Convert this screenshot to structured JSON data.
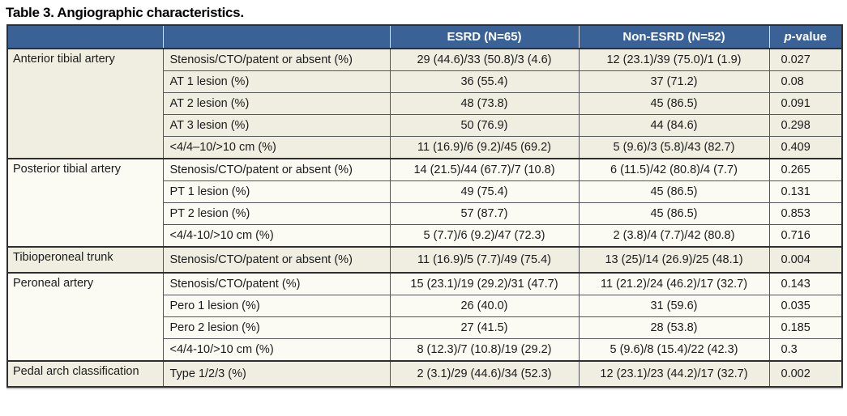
{
  "title": "Table 3. Angiographic characteristics.",
  "colors": {
    "header_bg": "#3a6296",
    "header_text": "#ffffff",
    "group_shade_cream": "#f0eee1",
    "group_shade_light": "#fbfaf3",
    "border_dark": "#2e2e2e",
    "border_thin": "#55565a"
  },
  "header": {
    "col1": "",
    "col2": "",
    "esrd": "ESRD (N=65)",
    "non_esrd": "Non-ESRD (N=52)",
    "p_italic": "p",
    "p_rest": "-value"
  },
  "table": {
    "groups": [
      {
        "label": "Anterior tibial artery",
        "shade": "cream",
        "rows": [
          {
            "measure": "Stenosis/CTO/patent or absent (%)",
            "esrd": "29 (44.6)/33 (50.8)/3 (4.6)",
            "non_esrd": "12 (23.1)/39 (75.0)/1 (1.9)",
            "p": "0.027"
          },
          {
            "measure": "AT 1 lesion (%)",
            "esrd": "36 (55.4)",
            "non_esrd": "37 (71.2)",
            "p": "0.08"
          },
          {
            "measure": "AT 2 lesion (%)",
            "esrd": "48 (73.8)",
            "non_esrd": "45 (86.5)",
            "p": "0.091"
          },
          {
            "measure": "AT 3 lesion (%)",
            "esrd": "50 (76.9)",
            "non_esrd": "44 (84.6)",
            "p": "0.298"
          },
          {
            "measure": "<4/4–10/>10 cm (%)",
            "esrd": "11 (16.9)/6 (9.2)/45 (69.2)",
            "non_esrd": "5 (9.6)/3 (5.8)/43 (82.7)",
            "p": "0.409"
          }
        ]
      },
      {
        "label": "Posterior tibial artery",
        "shade": "light",
        "rows": [
          {
            "measure": "Stenosis/CTO/patent or absent (%)",
            "esrd": "14 (21.5)/44 (67.7)/7 (10.8)",
            "non_esrd": "6 (11.5)/42 (80.8)/4 (7.7)",
            "p": "0.265"
          },
          {
            "measure": "PT 1 lesion (%)",
            "esrd": "49 (75.4)",
            "non_esrd": "45 (86.5)",
            "p": "0.131"
          },
          {
            "measure": "PT 2 lesion (%)",
            "esrd": "57 (87.7)",
            "non_esrd": "45 (86.5)",
            "p": "0.853"
          },
          {
            "measure": "<4/4-10/>10 cm (%)",
            "esrd": "5 (7.7)/6 (9.2)/47 (72.3)",
            "non_esrd": "2 (3.8)/4 (7.7)/42 (80.8)",
            "p": "0.716"
          }
        ]
      },
      {
        "label": "Tibioperoneal trunk",
        "shade": "cream",
        "rows": [
          {
            "measure": "Stenosis/CTO/patent or absent (%)",
            "esrd": "11 (16.9)/5 (7.7)/49 (75.4)",
            "non_esrd": "13 (25)/14 (26.9)/25 (48.1)",
            "p": "0.004"
          }
        ]
      },
      {
        "label": "Peroneal artery",
        "shade": "light",
        "rows": [
          {
            "measure": "Stenosis/CTO/patent (%)",
            "esrd": "15 (23.1)/19 (29.2)/31 (47.7)",
            "non_esrd": "11 (21.2)/24 (46.2)/17 (32.7)",
            "p": "0.143"
          },
          {
            "measure": "Pero 1 lesion (%)",
            "esrd": "26 (40.0)",
            "non_esrd": "31 (59.6)",
            "p": "0.035"
          },
          {
            "measure": "Pero 2 lesion (%)",
            "esrd": "27 (41.5)",
            "non_esrd": "28 (53.8)",
            "p": "0.185"
          },
          {
            "measure": "<4/4-10/>10 cm (%)",
            "esrd": "8 (12.3)/7 (10.8)/19 (29.2)",
            "non_esrd": "5 (9.6)/8 (15.4)/22 (42.3)",
            "p": "0.3"
          }
        ]
      },
      {
        "label": "Pedal arch classification",
        "shade": "cream",
        "rows": [
          {
            "measure": "Type 1/2/3 (%)",
            "esrd": "2 (3.1)/29 (44.6)/34 (52.3)",
            "non_esrd": "12 (23.1)/23 (44.2)/17 (32.7)",
            "p": "0.002"
          }
        ]
      }
    ]
  }
}
